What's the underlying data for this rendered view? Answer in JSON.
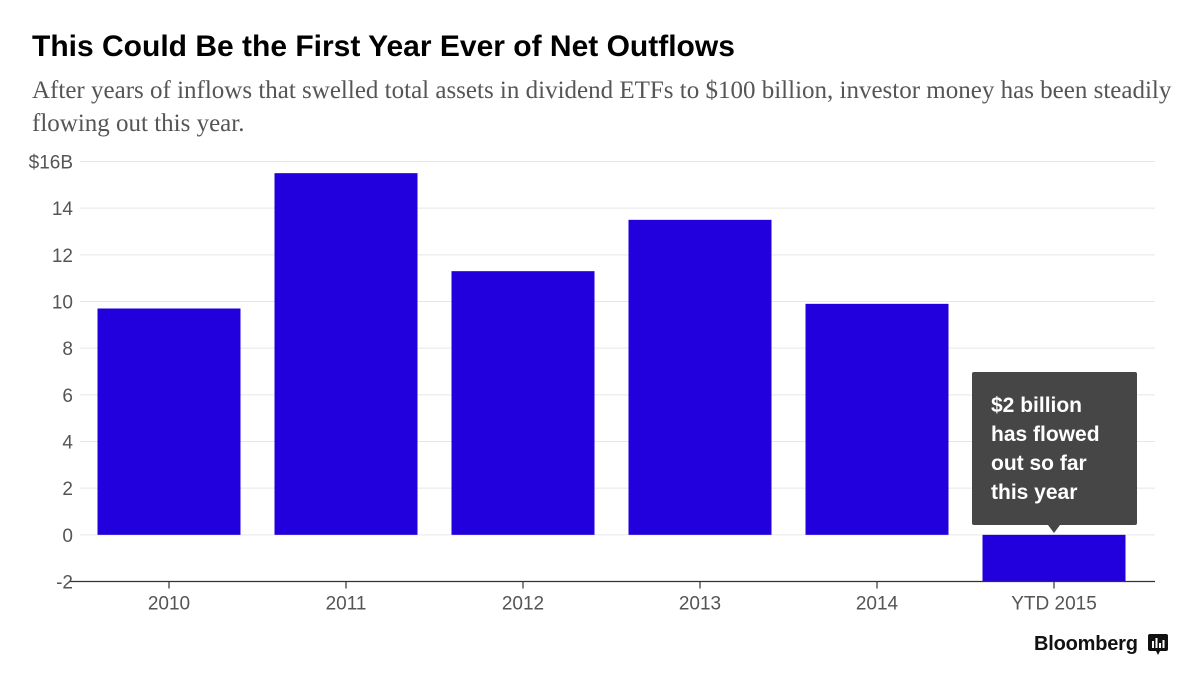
{
  "title": "This Could Be the First Year Ever of Net Outflows",
  "subtitle": "After years of inflows that swelled total assets in dividend ETFs to $100 billion, investor money has been steadily flowing out this year.",
  "brand": {
    "name": "Bloomberg",
    "icon": "bloomberg-terminal-icon"
  },
  "colors": {
    "bar": "#2200dd",
    "tooltip_bg": "#464646",
    "grid": "#e6e6e6",
    "axis": "#333333"
  },
  "chart_data": {
    "type": "bar",
    "categories": [
      "2010",
      "2011",
      "2012",
      "2013",
      "2014",
      "YTD 2015"
    ],
    "values": [
      9.7,
      15.5,
      11.3,
      13.5,
      9.9,
      -2.0
    ],
    "title": "This Could Be the First Year Ever of Net Outflows",
    "subtitle": "After years of inflows that swelled total assets in dividend ETFs to $100 billion, investor money has been steadily flowing out this year.",
    "xlabel": "",
    "ylabel": "",
    "ylim": [
      -2,
      16
    ],
    "yticks": [
      16,
      14,
      12,
      10,
      8,
      6,
      4,
      2,
      0,
      -2
    ],
    "ytick_labels": [
      "$16B",
      "14",
      "12",
      "10",
      "8",
      "6",
      "4",
      "2",
      "0",
      "-2"
    ],
    "grid": true,
    "annotations": [
      {
        "category": "YTD 2015",
        "lines": [
          "$2 billion",
          "has flowed",
          "out so far",
          "this year"
        ]
      }
    ]
  }
}
